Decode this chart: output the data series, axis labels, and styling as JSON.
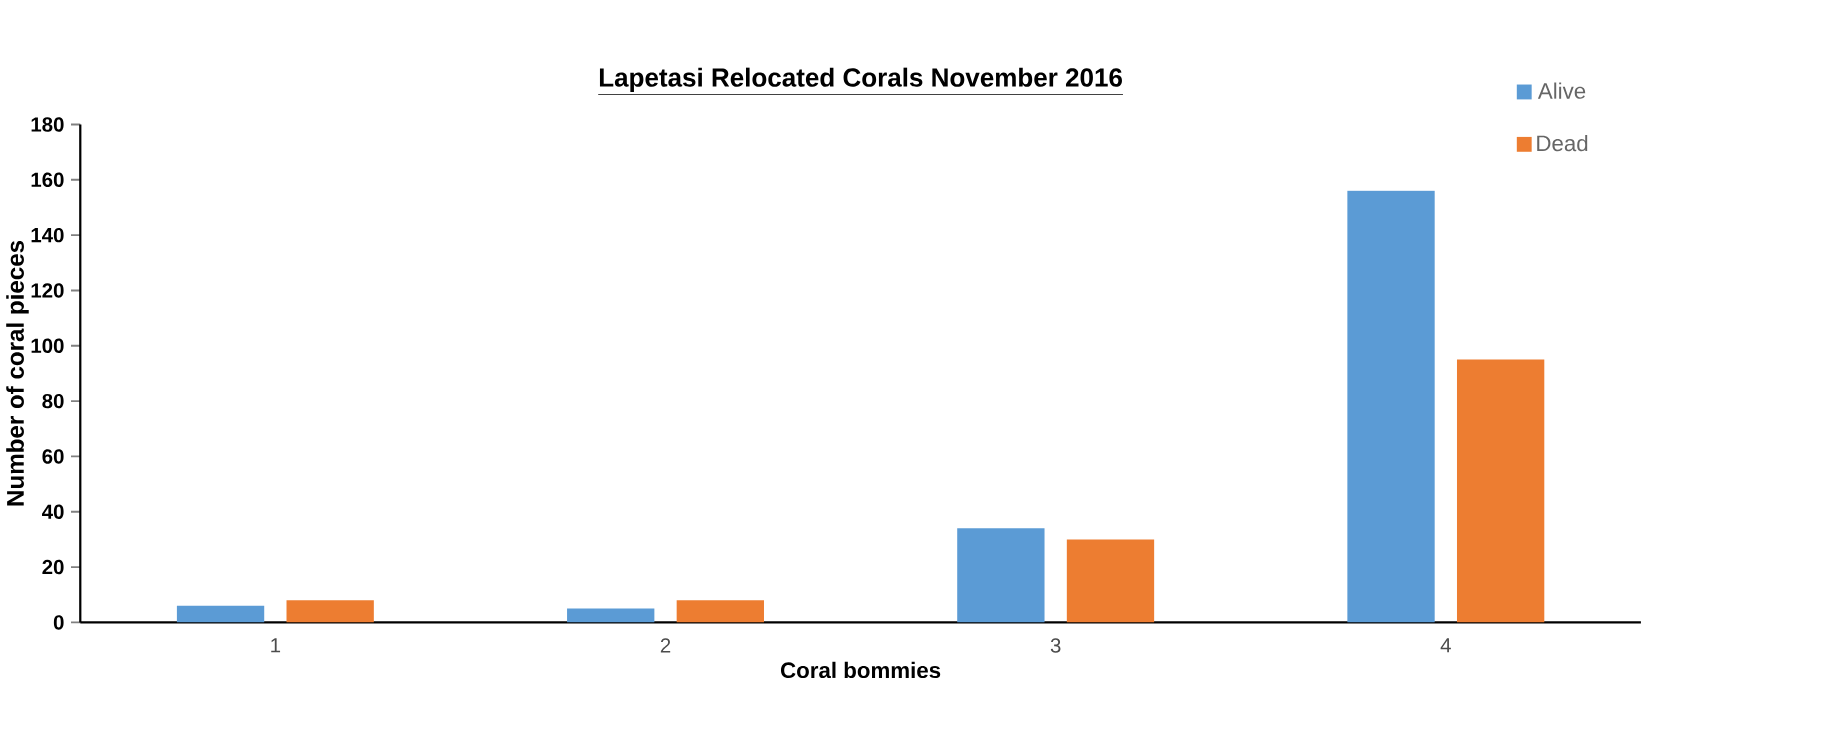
{
  "chart_data": {
    "type": "bar",
    "title": "Lapetasi Relocated Corals November 2016",
    "xlabel": "Coral bommies",
    "ylabel": "Number of coral pieces",
    "categories": [
      "1",
      "2",
      "3",
      "4"
    ],
    "series": [
      {
        "name": "Alive",
        "color": "#5b9bd5",
        "values": [
          6,
          5,
          34,
          156
        ]
      },
      {
        "name": "Dead",
        "color": "#ed7d31",
        "values": [
          8,
          8,
          30,
          95
        ]
      }
    ],
    "ylim": [
      0,
      180
    ],
    "yticks": [
      0,
      20,
      40,
      60,
      80,
      100,
      120,
      140,
      160,
      180
    ],
    "grid": false,
    "legend": "top right"
  }
}
